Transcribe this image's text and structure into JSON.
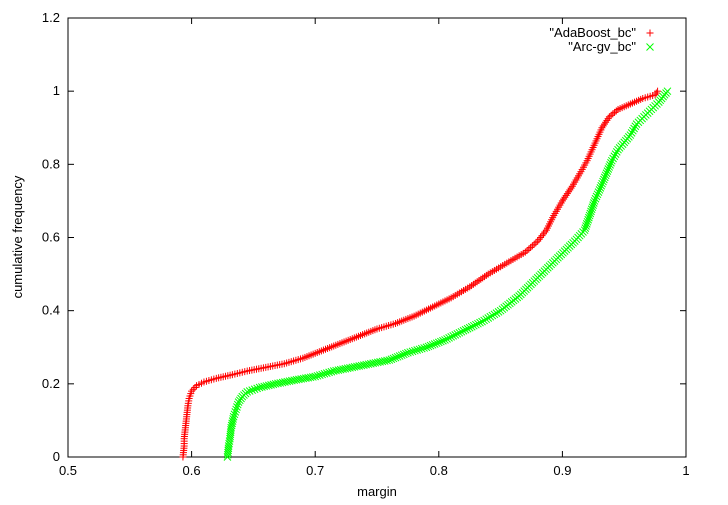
{
  "chart_data": {
    "type": "scatter",
    "title": "",
    "xlabel": "margin",
    "ylabel": "cumulative frequency",
    "xlim": [
      0.5,
      1.0
    ],
    "ylim": [
      0,
      1.2
    ],
    "xticks": [
      "0.5",
      "0.6",
      "0.7",
      "0.8",
      "0.9",
      "1"
    ],
    "yticks": [
      "0",
      "0.2",
      "0.4",
      "0.6",
      "0.8",
      "1",
      "1.2"
    ],
    "grid": false,
    "legend_position": "top-right",
    "series": [
      {
        "name": "\"AdaBoost_bc\"",
        "marker": "plus",
        "color": "#ff0000",
        "points": [
          [
            0.593,
            0.0
          ],
          [
            0.594,
            0.03
          ],
          [
            0.594,
            0.05
          ],
          [
            0.595,
            0.08
          ],
          [
            0.596,
            0.11
          ],
          [
            0.597,
            0.14
          ],
          [
            0.598,
            0.16
          ],
          [
            0.6,
            0.18
          ],
          [
            0.604,
            0.195
          ],
          [
            0.61,
            0.205
          ],
          [
            0.62,
            0.215
          ],
          [
            0.633,
            0.225
          ],
          [
            0.645,
            0.235
          ],
          [
            0.66,
            0.245
          ],
          [
            0.675,
            0.255
          ],
          [
            0.69,
            0.27
          ],
          [
            0.705,
            0.29
          ],
          [
            0.72,
            0.31
          ],
          [
            0.735,
            0.33
          ],
          [
            0.75,
            0.35
          ],
          [
            0.765,
            0.365
          ],
          [
            0.78,
            0.385
          ],
          [
            0.795,
            0.41
          ],
          [
            0.81,
            0.435
          ],
          [
            0.825,
            0.465
          ],
          [
            0.84,
            0.5
          ],
          [
            0.855,
            0.53
          ],
          [
            0.87,
            0.56
          ],
          [
            0.88,
            0.59
          ],
          [
            0.887,
            0.62
          ],
          [
            0.893,
            0.66
          ],
          [
            0.9,
            0.7
          ],
          [
            0.908,
            0.74
          ],
          [
            0.915,
            0.78
          ],
          [
            0.92,
            0.81
          ],
          [
            0.924,
            0.84
          ],
          [
            0.928,
            0.87
          ],
          [
            0.932,
            0.9
          ],
          [
            0.938,
            0.93
          ],
          [
            0.945,
            0.95
          ],
          [
            0.955,
            0.965
          ],
          [
            0.965,
            0.98
          ],
          [
            0.975,
            0.99
          ],
          [
            0.977,
            1.0
          ]
        ]
      },
      {
        "name": "\"Arc-gv_bc\"",
        "marker": "cross",
        "color": "#00ff00",
        "points": [
          [
            0.629,
            0.0
          ],
          [
            0.63,
            0.03
          ],
          [
            0.631,
            0.05
          ],
          [
            0.632,
            0.08
          ],
          [
            0.634,
            0.11
          ],
          [
            0.636,
            0.13
          ],
          [
            0.638,
            0.15
          ],
          [
            0.641,
            0.165
          ],
          [
            0.645,
            0.178
          ],
          [
            0.655,
            0.19
          ],
          [
            0.668,
            0.2
          ],
          [
            0.683,
            0.21
          ],
          [
            0.7,
            0.22
          ],
          [
            0.715,
            0.235
          ],
          [
            0.73,
            0.245
          ],
          [
            0.745,
            0.255
          ],
          [
            0.76,
            0.265
          ],
          [
            0.775,
            0.285
          ],
          [
            0.79,
            0.3
          ],
          [
            0.805,
            0.32
          ],
          [
            0.82,
            0.345
          ],
          [
            0.835,
            0.37
          ],
          [
            0.85,
            0.4
          ],
          [
            0.865,
            0.44
          ],
          [
            0.88,
            0.49
          ],
          [
            0.895,
            0.54
          ],
          [
            0.91,
            0.59
          ],
          [
            0.918,
            0.62
          ],
          [
            0.922,
            0.66
          ],
          [
            0.926,
            0.7
          ],
          [
            0.93,
            0.73
          ],
          [
            0.935,
            0.77
          ],
          [
            0.94,
            0.81
          ],
          [
            0.945,
            0.84
          ],
          [
            0.95,
            0.86
          ],
          [
            0.955,
            0.88
          ],
          [
            0.96,
            0.91
          ],
          [
            0.966,
            0.93
          ],
          [
            0.972,
            0.95
          ],
          [
            0.978,
            0.97
          ],
          [
            0.985,
            1.0
          ]
        ]
      }
    ]
  }
}
